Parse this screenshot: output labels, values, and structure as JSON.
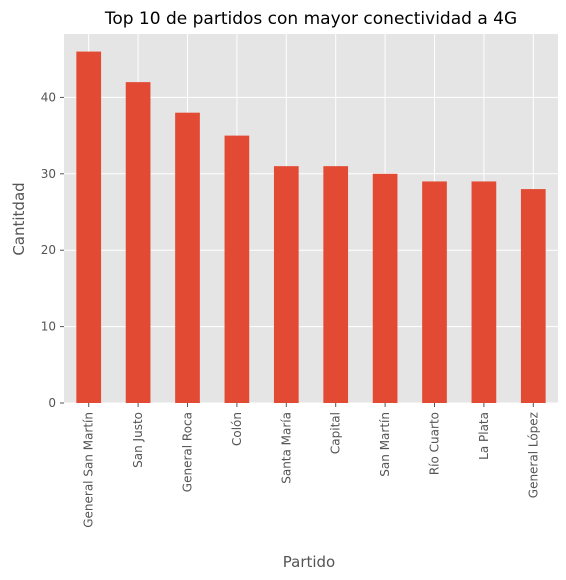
{
  "chart_data": {
    "type": "bar",
    "title": "Top 10 de partidos con mayor conectividad a 4G",
    "xlabel": "Partido",
    "ylabel": "Cantitdad",
    "categories": [
      "General San Martín",
      "San Justo",
      "General Roca",
      "Colón",
      "Santa María",
      "Capital",
      "San Martín",
      "Río Cuarto",
      "La Plata",
      "General López"
    ],
    "values": [
      46,
      42,
      38,
      35,
      31,
      31,
      30,
      29,
      29,
      28
    ],
    "yticks": [
      "0",
      "10",
      "20",
      "30",
      "40"
    ],
    "ylim": [
      0,
      48.3
    ],
    "grid": true,
    "legend": "none",
    "colors": {
      "bar": "#E24A33",
      "plot_background": "#E5E5E5",
      "grid": "#FFFFFF",
      "text": "#555555",
      "title": "#000000"
    }
  }
}
